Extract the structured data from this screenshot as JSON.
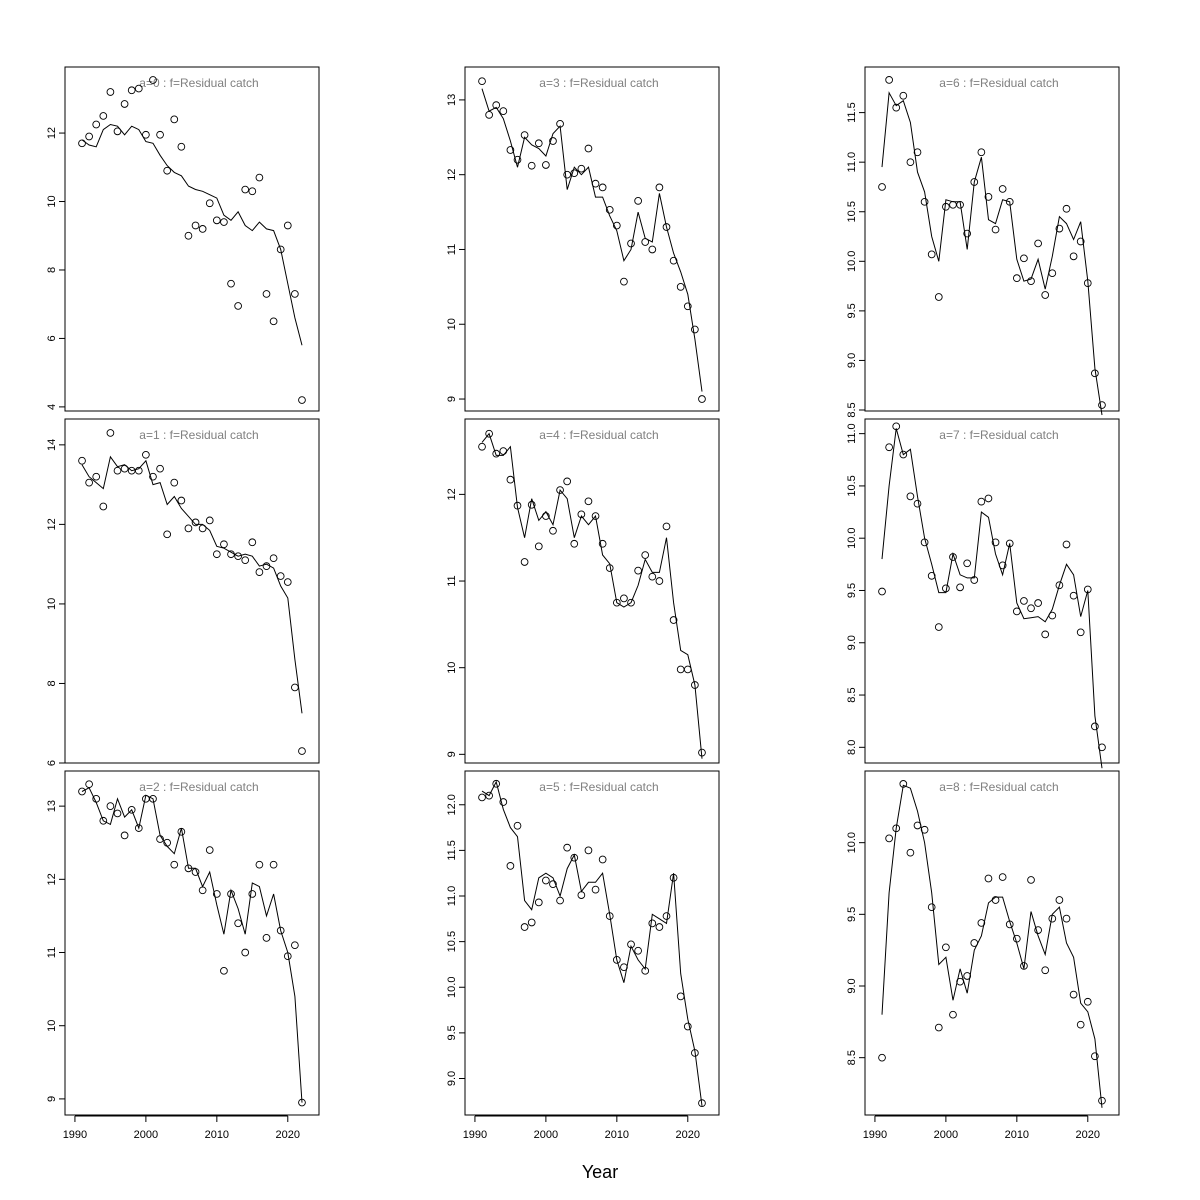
{
  "chart_data": {
    "type": "scatter",
    "xlabel": "Year",
    "years": [
      1991,
      1992,
      1993,
      1994,
      1995,
      1996,
      1997,
      1998,
      1999,
      2000,
      2001,
      2002,
      2003,
      2004,
      2005,
      2006,
      2007,
      2008,
      2009,
      2010,
      2011,
      2012,
      2013,
      2014,
      2015,
      2016,
      2017,
      2018,
      2019,
      2020,
      2021,
      2022
    ],
    "xlim": [
      1988.6,
      2024.4
    ],
    "xticks": [
      1990,
      2000,
      2010,
      2020
    ],
    "marker": "open-circle",
    "line_color": "#000000",
    "title_color": "#808080",
    "panels": [
      {
        "title": "a=0  :  f=Residual catch",
        "ylim": [
          3.88,
          13.93
        ],
        "yticks": [
          "4",
          "6",
          "8",
          "10",
          "12"
        ],
        "points": [
          11.7,
          11.9,
          12.25,
          12.5,
          13.2,
          12.05,
          12.85,
          13.25,
          13.3,
          11.95,
          13.55,
          11.95,
          10.9,
          12.4,
          11.6,
          9.0,
          9.3,
          9.2,
          9.95,
          9.45,
          9.4,
          7.6,
          6.95,
          10.35,
          10.3,
          10.7,
          7.3,
          6.5,
          8.6,
          9.3,
          7.3,
          4.2
        ],
        "fitted": [
          11.8,
          11.65,
          11.6,
          12.1,
          12.25,
          12.2,
          11.95,
          12.2,
          12.1,
          11.75,
          11.7,
          11.35,
          11.05,
          10.85,
          10.75,
          10.45,
          10.35,
          10.3,
          10.2,
          10.1,
          9.6,
          9.45,
          9.7,
          9.3,
          9.15,
          9.4,
          9.2,
          9.15,
          8.6,
          7.6,
          6.6,
          5.8
        ]
      },
      {
        "title": "a=1  :  f=Residual catch",
        "ylim": [
          6.0,
          14.65
        ],
        "yticks": [
          "6",
          "8",
          "10",
          "12",
          "14"
        ],
        "points": [
          13.6,
          13.05,
          13.2,
          12.45,
          14.3,
          13.35,
          13.4,
          13.35,
          13.35,
          13.75,
          13.2,
          13.4,
          11.75,
          13.05,
          12.6,
          11.9,
          12.05,
          11.9,
          12.1,
          11.25,
          11.5,
          11.25,
          11.2,
          11.1,
          11.55,
          10.8,
          10.95,
          11.15,
          10.7,
          10.55,
          7.9,
          6.3
        ],
        "fitted": [
          13.5,
          13.2,
          13.05,
          12.9,
          13.7,
          13.45,
          13.5,
          13.35,
          13.4,
          13.6,
          13.0,
          13.05,
          12.5,
          12.7,
          12.4,
          12.2,
          12.0,
          12.0,
          11.85,
          11.45,
          11.4,
          11.3,
          11.2,
          11.25,
          11.2,
          10.95,
          11.0,
          10.9,
          10.45,
          10.15,
          8.6,
          7.25
        ]
      },
      {
        "title": "a=2  :  f=Residual catch",
        "ylim": [
          8.78,
          13.48
        ],
        "yticks": [
          "9",
          "10",
          "11",
          "12",
          "13"
        ],
        "points": [
          13.2,
          13.3,
          13.1,
          12.8,
          13.0,
          12.9,
          12.6,
          12.95,
          12.7,
          13.1,
          13.1,
          12.55,
          12.5,
          12.2,
          12.65,
          12.15,
          12.1,
          11.85,
          12.4,
          11.8,
          10.75,
          11.8,
          11.4,
          11.0,
          11.8,
          12.2,
          11.2,
          12.2,
          11.3,
          10.95,
          11.1,
          8.95
        ],
        "fitted": [
          13.2,
          13.25,
          13.05,
          12.8,
          12.75,
          13.1,
          12.85,
          12.95,
          12.7,
          13.15,
          13.1,
          12.6,
          12.45,
          12.35,
          12.7,
          12.15,
          12.15,
          11.9,
          12.1,
          11.65,
          11.25,
          11.85,
          11.6,
          11.25,
          11.95,
          11.9,
          11.5,
          11.8,
          11.3,
          11.0,
          10.4,
          8.95
        ]
      },
      {
        "title": "a=3  :  f=Residual catch",
        "ylim": [
          8.84,
          13.44
        ],
        "yticks": [
          "9",
          "10",
          "11",
          "12",
          "13"
        ],
        "points": [
          13.25,
          12.8,
          12.93,
          12.85,
          12.33,
          12.2,
          12.53,
          12.12,
          12.42,
          12.13,
          12.45,
          12.68,
          12.0,
          12.02,
          12.08,
          12.35,
          11.88,
          11.83,
          11.53,
          11.32,
          10.57,
          11.08,
          11.65,
          11.1,
          11.0,
          11.83,
          11.3,
          10.85,
          10.5,
          10.24,
          9.93,
          9.0
        ],
        "fitted": [
          13.15,
          12.85,
          12.9,
          12.75,
          12.45,
          12.1,
          12.5,
          12.4,
          12.35,
          12.25,
          12.55,
          12.65,
          11.8,
          12.1,
          12.0,
          12.1,
          11.7,
          11.7,
          11.45,
          11.25,
          10.85,
          11.0,
          11.5,
          11.15,
          11.1,
          11.75,
          11.3,
          10.95,
          10.7,
          10.4,
          9.8,
          9.1
        ]
      },
      {
        "title": "a=4  :  f=Residual catch",
        "ylim": [
          8.9,
          12.87
        ],
        "yticks": [
          "9",
          "10",
          "11",
          "12"
        ],
        "points": [
          12.55,
          12.7,
          12.47,
          12.5,
          12.17,
          11.87,
          11.22,
          11.88,
          11.4,
          11.75,
          11.58,
          12.05,
          12.15,
          11.43,
          11.77,
          11.92,
          11.75,
          11.43,
          11.15,
          10.75,
          10.8,
          10.75,
          11.12,
          11.3,
          11.05,
          11.0,
          11.63,
          10.55,
          9.98,
          9.98,
          9.8,
          9.02
        ],
        "fitted": [
          12.6,
          12.7,
          12.45,
          12.45,
          12.55,
          11.85,
          11.5,
          11.95,
          11.7,
          11.8,
          11.65,
          12.05,
          11.95,
          11.5,
          11.75,
          11.65,
          11.75,
          11.3,
          11.2,
          10.75,
          10.7,
          10.75,
          10.95,
          11.25,
          11.1,
          11.1,
          11.5,
          10.75,
          10.2,
          10.15,
          9.8,
          8.95
        ]
      },
      {
        "title": "a=5  :  f=Residual catch",
        "ylim": [
          8.6,
          12.37
        ],
        "yticks": [
          "9.0",
          "9.5",
          "10.0",
          "10.5",
          "11.0",
          "11.5",
          "12.0"
        ],
        "points": [
          12.08,
          12.1,
          12.23,
          12.03,
          11.33,
          11.77,
          10.66,
          10.71,
          10.93,
          11.17,
          11.13,
          10.95,
          11.53,
          11.42,
          11.01,
          11.5,
          11.07,
          11.4,
          10.78,
          10.3,
          10.22,
          10.47,
          10.4,
          10.18,
          10.7,
          10.66,
          10.78,
          11.2,
          9.9,
          9.57,
          9.28,
          8.73
        ],
        "fitted": [
          12.15,
          12.1,
          12.25,
          11.95,
          11.75,
          11.65,
          10.95,
          10.85,
          11.2,
          11.25,
          11.2,
          11.0,
          11.3,
          11.45,
          11.05,
          11.15,
          11.15,
          11.25,
          10.8,
          10.3,
          10.05,
          10.45,
          10.3,
          10.2,
          10.8,
          10.75,
          10.7,
          11.25,
          10.15,
          9.65,
          9.3,
          8.7
        ]
      },
      {
        "title": "a=6  :  f=Residual catch",
        "ylim": [
          8.49,
          11.96
        ],
        "yticks": [
          "8.5",
          "9.0",
          "9.5",
          "10.0",
          "10.5",
          "11.0",
          "11.5"
        ],
        "points": [
          10.75,
          11.83,
          11.55,
          11.67,
          11.0,
          11.1,
          10.6,
          10.07,
          9.64,
          10.55,
          10.57,
          10.57,
          10.28,
          10.8,
          11.1,
          10.65,
          10.32,
          10.73,
          10.6,
          9.83,
          10.03,
          9.8,
          10.18,
          9.66,
          9.88,
          10.33,
          10.53,
          10.05,
          10.2,
          9.78,
          8.87,
          8.55
        ],
        "fitted": [
          10.95,
          11.7,
          11.57,
          11.62,
          11.4,
          10.9,
          10.7,
          10.25,
          10.0,
          10.62,
          10.6,
          10.6,
          10.12,
          10.8,
          11.05,
          10.42,
          10.38,
          10.62,
          10.6,
          10.02,
          9.8,
          9.82,
          10.02,
          9.72,
          10.05,
          10.45,
          10.38,
          10.22,
          10.4,
          9.8,
          8.92,
          8.45
        ]
      },
      {
        "title": "a=7  :  f=Residual catch",
        "ylim": [
          7.85,
          11.14
        ],
        "yticks": [
          "8.0",
          "8.5",
          "9.0",
          "9.5",
          "10.0",
          "10.5",
          "11.0"
        ],
        "points": [
          9.49,
          10.87,
          11.07,
          10.8,
          10.4,
          10.33,
          9.96,
          9.64,
          9.15,
          9.52,
          9.82,
          9.53,
          9.76,
          9.6,
          10.35,
          10.38,
          9.96,
          9.74,
          9.95,
          9.3,
          9.4,
          9.33,
          9.38,
          9.08,
          9.26,
          9.55,
          9.94,
          9.45,
          9.1,
          9.51,
          8.2,
          8.0
        ],
        "fitted": [
          9.8,
          10.5,
          11.05,
          10.8,
          10.85,
          10.4,
          10.0,
          9.75,
          9.48,
          9.48,
          9.85,
          9.65,
          9.62,
          9.62,
          10.25,
          10.2,
          9.85,
          9.65,
          9.95,
          9.38,
          9.23,
          9.24,
          9.25,
          9.2,
          9.32,
          9.55,
          9.75,
          9.65,
          9.25,
          9.5,
          8.3,
          7.8
        ]
      },
      {
        "title": "a=8  :  f=Residual catch",
        "ylim": [
          8.1,
          10.5
        ],
        "yticks": [
          "8.5",
          "9.0",
          "9.5",
          "10.0"
        ],
        "points": [
          8.5,
          10.03,
          10.1,
          10.41,
          9.93,
          10.12,
          10.09,
          9.55,
          8.71,
          9.27,
          8.8,
          9.03,
          9.07,
          9.3,
          9.44,
          9.75,
          9.6,
          9.76,
          9.43,
          9.33,
          9.14,
          9.74,
          9.39,
          9.11,
          9.47,
          9.6,
          9.47,
          8.94,
          8.73,
          8.89,
          8.51,
          8.2
        ],
        "fitted": [
          8.8,
          9.65,
          10.1,
          10.4,
          10.38,
          10.22,
          10.0,
          9.65,
          9.15,
          9.2,
          8.9,
          9.12,
          8.95,
          9.25,
          9.35,
          9.58,
          9.62,
          9.62,
          9.45,
          9.3,
          9.12,
          9.52,
          9.35,
          9.22,
          9.5,
          9.55,
          9.3,
          9.2,
          8.88,
          8.82,
          8.63,
          8.15
        ]
      }
    ]
  }
}
